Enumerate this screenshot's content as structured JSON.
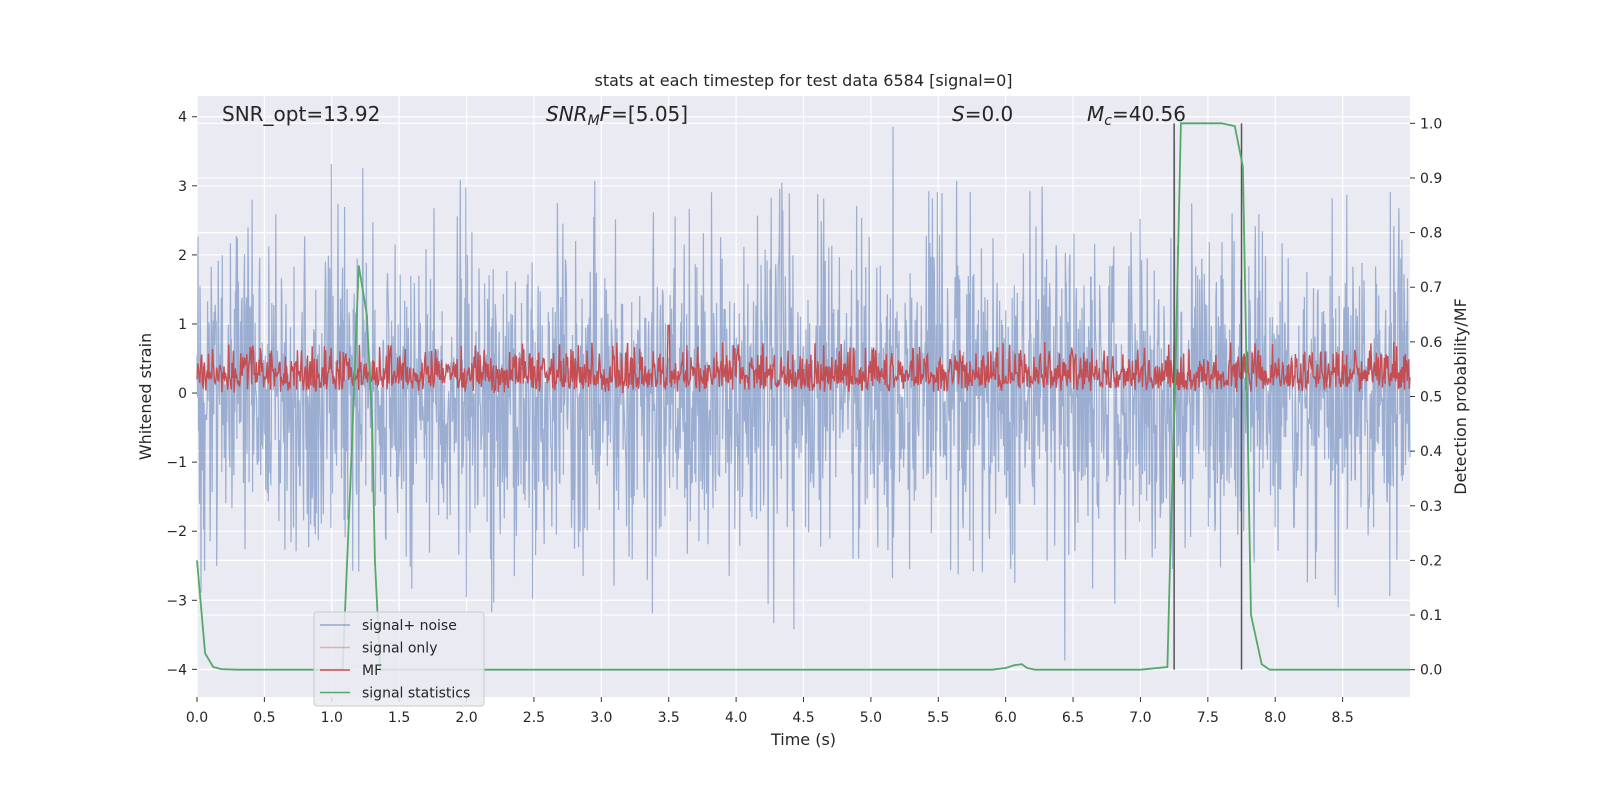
{
  "chart_data": {
    "type": "line",
    "title": "stats at each timestep for test data 6584 [signal=0]",
    "xlabel": "Time (s)",
    "ylabel_left": "Whitened strain",
    "ylabel_right": "Detection probability/MF",
    "xlim": [
      0,
      9.0
    ],
    "ylim_left": [
      -4.4,
      4.3
    ],
    "ylim_right": [
      -0.05,
      1.05
    ],
    "x_ticks": [
      "0.0",
      "0.5",
      "1.0",
      "1.5",
      "2.0",
      "2.5",
      "3.0",
      "3.5",
      "4.0",
      "4.5",
      "5.0",
      "5.5",
      "6.0",
      "6.5",
      "7.0",
      "7.5",
      "8.0",
      "8.5"
    ],
    "x_tick_values": [
      0,
      0.5,
      1.0,
      1.5,
      2.0,
      2.5,
      3.0,
      3.5,
      4.0,
      4.5,
      5.0,
      5.5,
      6.0,
      6.5,
      7.0,
      7.5,
      8.0,
      8.5
    ],
    "y_left_ticks": [
      "4",
      "3",
      "2",
      "1",
      "0",
      "−1",
      "−2",
      "−3",
      "−4"
    ],
    "y_left_tick_values": [
      4,
      3,
      2,
      1,
      0,
      -1,
      -2,
      -3,
      -4
    ],
    "y_right_ticks": [
      "1.0",
      "0.9",
      "0.8",
      "0.7",
      "0.6",
      "0.5",
      "0.4",
      "0.3",
      "0.2",
      "0.1",
      "0.0"
    ],
    "y_right_tick_values": [
      1.0,
      0.9,
      0.8,
      0.7,
      0.6,
      0.5,
      0.4,
      0.3,
      0.2,
      0.1,
      0.0
    ],
    "grid": true,
    "legend_position": "lower-left",
    "annotations": [
      {
        "prefix": "SNR_opt=13.92",
        "italic": "",
        "sub": "",
        "suffix": ""
      },
      {
        "prefix": "",
        "italic": "SNR",
        "sub": "M",
        "italic2": "F",
        "suffix": "=[5.05]"
      },
      {
        "prefix": "",
        "italic": "S",
        "sub": "",
        "suffix": "=0.0"
      },
      {
        "prefix": "",
        "italic": "M",
        "sub": "c",
        "suffix": "=40.56"
      }
    ],
    "series": [
      {
        "name": "signal+ noise",
        "color": "#4c72b0",
        "axis": "left",
        "description_values": "whitened strain noise, approx. range -4 to 3.9"
      },
      {
        "name": "signal only",
        "color": "#dd8452",
        "axis": "left",
        "values": []
      },
      {
        "name": "MF",
        "color": "#c44e52",
        "axis": "right",
        "description_values": "approx. 0.5 to 0.62, peak 0.63 at t=3.5"
      },
      {
        "name": "signal statistics",
        "color": "#55a868",
        "axis": "right",
        "x": [
          0.0,
          0.06,
          0.12,
          0.18,
          0.3,
          0.5,
          1.0,
          1.08,
          1.14,
          1.2,
          1.26,
          1.3,
          1.32,
          1.36,
          1.4,
          1.5,
          2.0,
          3.0,
          4.0,
          5.0,
          5.9,
          6.0,
          6.06,
          6.12,
          6.16,
          6.22,
          6.3,
          7.0,
          7.2,
          7.22,
          7.26,
          7.3,
          7.36,
          7.6,
          7.7,
          7.76,
          7.82,
          7.9,
          7.96,
          8.0,
          8.5,
          9.0
        ],
        "values": [
          0.2,
          0.03,
          0.005,
          0.001,
          0.0,
          0.0,
          0.0,
          0.001,
          0.35,
          0.74,
          0.65,
          0.45,
          0.2,
          0.0,
          0.0,
          0.0,
          0.0,
          0.0,
          0.0,
          0.0,
          0.0,
          0.003,
          0.008,
          0.01,
          0.003,
          0.0,
          0.0,
          0.0,
          0.005,
          0.2,
          0.55,
          1.0,
          1.0,
          1.0,
          0.995,
          0.92,
          0.1,
          0.01,
          0.0,
          0.0,
          0.0,
          0.0
        ]
      }
    ],
    "vlines": {
      "color": "#555555",
      "x": [
        7.25,
        7.75
      ]
    }
  }
}
